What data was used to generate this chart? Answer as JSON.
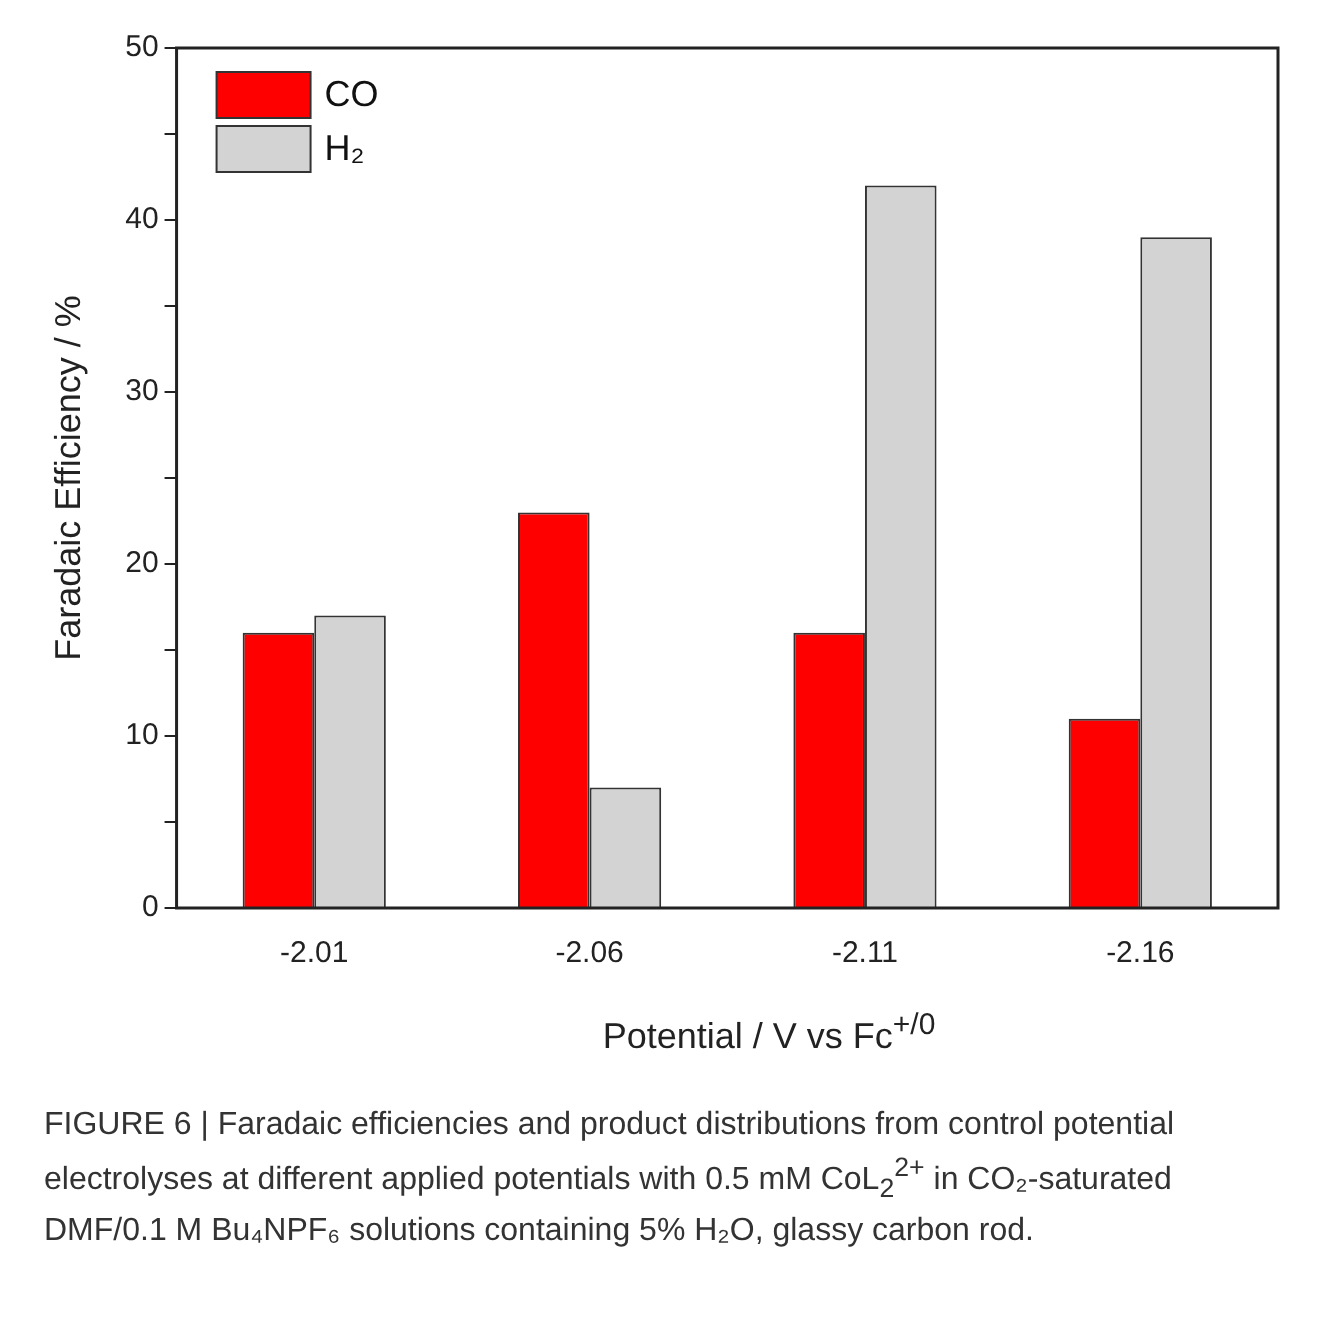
{
  "chart_data": {
    "type": "bar",
    "xlabel": "Potential / V vs Fc$^{+/0}$",
    "ylabel": "Faradaic Efficiency / %",
    "categories": [
      "-2.01",
      "-2.06",
      "-2.11",
      "-2.16"
    ],
    "series": [
      {
        "name": "CO",
        "color": "#ff0000",
        "values": [
          16,
          23,
          16,
          11
        ]
      },
      {
        "name": "H₂",
        "color": "#d3d3d3",
        "values": [
          17,
          7,
          42,
          39
        ]
      }
    ],
    "ylim": [
      0,
      50
    ],
    "yticks": [
      0,
      {
        "value": 5,
        "label": null
      },
      10,
      {
        "value": 15,
        "label": null
      },
      20,
      {
        "value": 25,
        "label": null
      },
      30,
      {
        "value": 35,
        "label": null
      },
      40,
      {
        "value": 45,
        "label": null
      },
      50
    ],
    "grid": false,
    "legend": "top left",
    "annotations": [
      "FIGURE 6 | Faradaic efficiencies and product distributions from control potential electrolyses at different applied potentials with 0.5 mM CoL$_{2}$$^{2+}$ in CO₂-saturated DMF/0.1 M Bu₄NPF₆ solutions containing 5% H₂O, glassy carbon rod."
    ]
  }
}
